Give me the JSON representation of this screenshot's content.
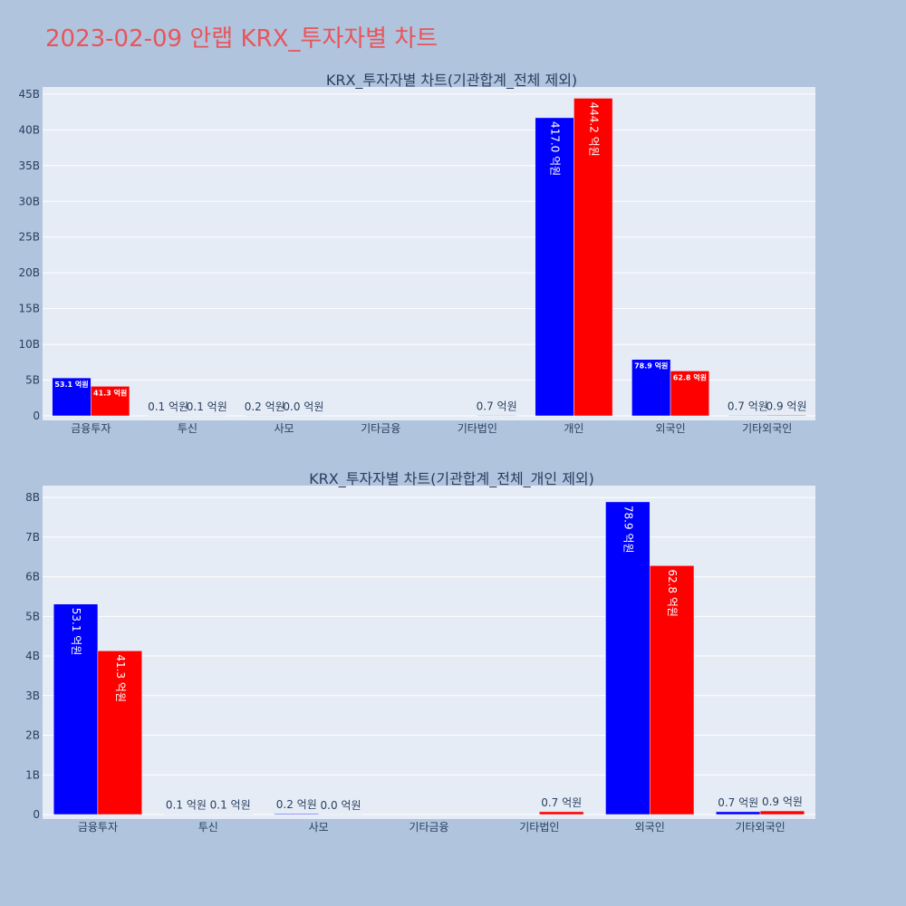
{
  "page_title": "2023-02-09 안랩 KRX_투자자별 차트",
  "chart_data": [
    {
      "type": "bar",
      "title": "KRX_투자자별 차트(기관합계_전체 제외)",
      "categories": [
        "금융투자",
        "투신",
        "사모",
        "기타금융",
        "기타법인",
        "개인",
        "외국인",
        "기타외국인"
      ],
      "series": [
        {
          "color": "#0000ff",
          "values": [
            5310000000,
            10000000,
            20000000,
            null,
            null,
            41700000000,
            7890000000,
            70000000
          ],
          "labels": [
            "53.1 억원",
            "0.1 억원",
            "0.2 억원",
            "",
            "",
            "417.0 억원",
            "78.9 억원",
            "0.7 억원"
          ]
        },
        {
          "color": "#ff0000",
          "values": [
            4130000000,
            10000000,
            0,
            null,
            70000000,
            44420000000,
            6280000000,
            90000000
          ],
          "labels": [
            "41.3 억원",
            "0.1 억원",
            "0.0 억원",
            "",
            "0.7 억원",
            "444.2 억원",
            "62.8 억원",
            "0.9 억원"
          ]
        }
      ],
      "ylim": [
        0,
        46000000000
      ],
      "yticks": [
        0,
        5000000000,
        10000000000,
        15000000000,
        20000000000,
        25000000000,
        30000000000,
        35000000000,
        40000000000,
        45000000000
      ],
      "ytick_labels": [
        "0",
        "5B",
        "10B",
        "15B",
        "20B",
        "25B",
        "30B",
        "35B",
        "40B",
        "45B"
      ],
      "grid": true,
      "legend": "none"
    },
    {
      "type": "bar",
      "title": "KRX_투자자별 차트(기관합계_전체_개인 제외)",
      "categories": [
        "금융투자",
        "투신",
        "사모",
        "기타금융",
        "기타법인",
        "외국인",
        "기타외국인"
      ],
      "series": [
        {
          "color": "#0000ff",
          "values": [
            5310000000,
            10000000,
            20000000,
            null,
            null,
            7890000000,
            70000000
          ],
          "labels": [
            "53.1 억원",
            "0.1 억원",
            "0.2 억원",
            "",
            "",
            "78.9 억원",
            "0.7 억원"
          ]
        },
        {
          "color": "#ff0000",
          "values": [
            4130000000,
            10000000,
            0,
            null,
            70000000,
            6280000000,
            90000000
          ],
          "labels": [
            "41.3 억원",
            "0.1 억원",
            "0.0 억원",
            "",
            "0.7 억원",
            "62.8 억원",
            "0.9 억원"
          ]
        }
      ],
      "ylim": [
        0,
        8300000000
      ],
      "yticks": [
        0,
        1000000000,
        2000000000,
        3000000000,
        4000000000,
        5000000000,
        6000000000,
        7000000000,
        8000000000
      ],
      "ytick_labels": [
        "0",
        "1B",
        "2B",
        "3B",
        "4B",
        "5B",
        "6B",
        "7B",
        "8B"
      ],
      "grid": true,
      "legend": "none"
    }
  ]
}
